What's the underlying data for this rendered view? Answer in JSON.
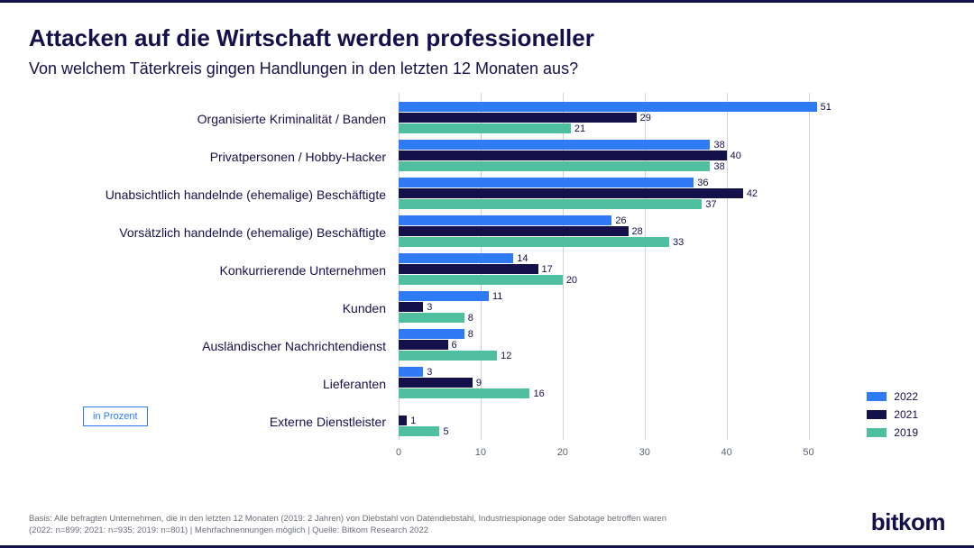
{
  "title": "Attacken auf die Wirtschaft werden professioneller",
  "subtitle": "Von welchem Täterkreis gingen Handlungen in den letzten 12 Monaten aus?",
  "unit_label": "in Prozent",
  "logo": "bitkom",
  "footnote_line1": "Basis: Alle befragten Unternehmen, die in den letzten 12 Monaten (2019: 2 Jahren) von Diebstahl von Datendiebstahl, Industriespionage oder Sabotage betroffen waren",
  "footnote_line2": "(2022: n=899; 2021: n=935; 2019: n=801) | Mehrfachnennungen möglich | Quelle: Bitkom Research 2022",
  "chart": {
    "type": "horizontal_grouped_bar",
    "xlim": [
      0,
      55
    ],
    "xticks": [
      0,
      10,
      20,
      30,
      40,
      50
    ],
    "tick_fontsize": 11,
    "label_fontsize": 14,
    "value_fontsize": 11,
    "grid_color": "#cfd3d8",
    "background_color": "#ffffff",
    "series": [
      {
        "key": "y2022",
        "label": "2022",
        "color": "#2f7bf5"
      },
      {
        "key": "y2021",
        "label": "2021",
        "color": "#14104a"
      },
      {
        "key": "y2019",
        "label": "2019",
        "color": "#4fbfa0"
      }
    ],
    "categories": [
      {
        "label": "Organisierte Kriminalität / Banden",
        "y2022": 51,
        "y2021": 29,
        "y2019": 21
      },
      {
        "label": "Privatpersonen / Hobby-Hacker",
        "y2022": 38,
        "y2021": 40,
        "y2019": 38
      },
      {
        "label": "Unabsichtlich handelnde (ehemalige) Beschäftigte",
        "y2022": 36,
        "y2021": 42,
        "y2019": 37
      },
      {
        "label": "Vorsätzlich handelnde (ehemalige) Beschäftigte",
        "y2022": 26,
        "y2021": 28,
        "y2019": 33
      },
      {
        "label": "Konkurrierende Unternehmen",
        "y2022": 14,
        "y2021": 17,
        "y2019": 20
      },
      {
        "label": "Kunden",
        "y2022": 11,
        "y2021": 3,
        "y2019": 8
      },
      {
        "label": "Ausländischer Nachrichtendienst",
        "y2022": 8,
        "y2021": 6,
        "y2019": 12
      },
      {
        "label": "Lieferanten",
        "y2022": 3,
        "y2021": 9,
        "y2019": 16
      },
      {
        "label": "Externe Dienstleister",
        "y2022": null,
        "y2021": 1,
        "y2019": 5
      }
    ]
  }
}
